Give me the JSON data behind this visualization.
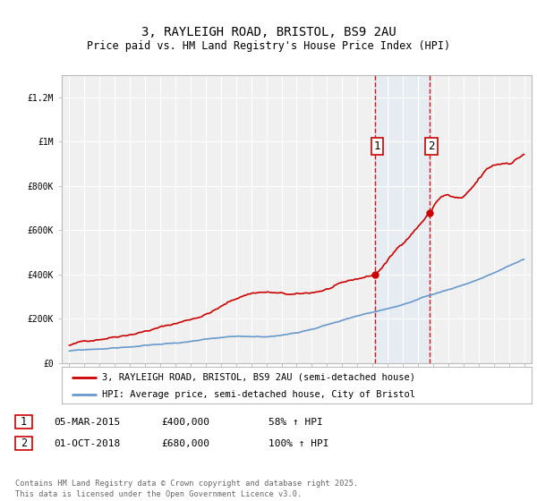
{
  "title": "3, RAYLEIGH ROAD, BRISTOL, BS9 2AU",
  "subtitle": "Price paid vs. HM Land Registry's House Price Index (HPI)",
  "ylim": [
    0,
    1300000
  ],
  "xlim": [
    1994.5,
    2025.5
  ],
  "bg_color": "#ffffff",
  "plot_bg_color": "#f0f0f0",
  "grid_color": "#ffffff",
  "red_color": "#cc0000",
  "blue_color": "#6699cc",
  "sale1_year": 2015.17,
  "sale1_price": 400000,
  "sale2_year": 2018.75,
  "sale2_price": 680000,
  "shade_color": "#dde8f5",
  "legend_label_red": "3, RAYLEIGH ROAD, BRISTOL, BS9 2AU (semi-detached house)",
  "legend_label_blue": "HPI: Average price, semi-detached house, City of Bristol",
  "table_row1": [
    "1",
    "05-MAR-2015",
    "£400,000",
    "58% ↑ HPI"
  ],
  "table_row2": [
    "2",
    "01-OCT-2018",
    "£680,000",
    "100% ↑ HPI"
  ],
  "footer": "Contains HM Land Registry data © Crown copyright and database right 2025.\nThis data is licensed under the Open Government Licence v3.0.",
  "ytick_labels": [
    "£0",
    "£200K",
    "£400K",
    "£600K",
    "£800K",
    "£1M",
    "£1.2M"
  ],
  "ytick_values": [
    0,
    200000,
    400000,
    600000,
    800000,
    1000000,
    1200000
  ],
  "title_fontsize": 10,
  "subtitle_fontsize": 8.5,
  "tick_fontsize": 7,
  "legend_fontsize": 7.5
}
